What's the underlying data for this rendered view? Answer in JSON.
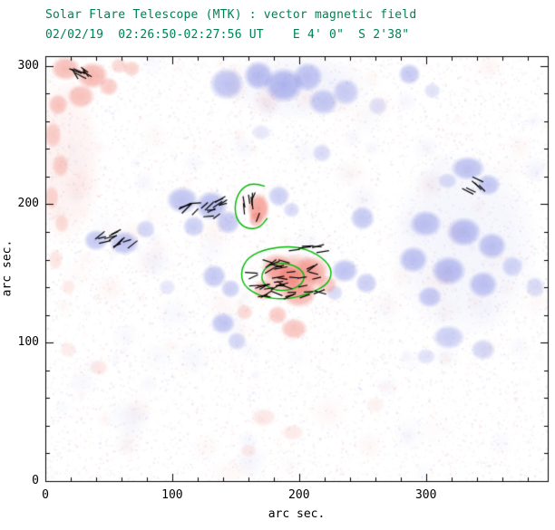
{
  "header": {
    "title": "Solar Flare Telescope (MTK) : vector magnetic field",
    "subtitle": "02/02/19  02:26:50-02:27:56 UT    E 4' 0\"  S 2'38\"",
    "title_color": "#008055"
  },
  "axes": {
    "xlabel": "arc sec.",
    "ylabel": "arc sec.",
    "x_ticks": [
      0,
      100,
      200,
      300
    ],
    "y_ticks": [
      0,
      100,
      200,
      300
    ],
    "x_range": [
      0,
      396
    ],
    "y_range": [
      0,
      307
    ],
    "minor_tick_interval": 20,
    "frame_color": "#000000"
  },
  "chart_data": {
    "type": "heatmap",
    "title": "Solar Flare Telescope (MTK) : vector magnetic field",
    "subtitle": "02/02/19  02:26:50-02:27:56 UT    E 4' 0\"  S 2'38\"",
    "xlabel": "arc sec.",
    "ylabel": "arc sec.",
    "xlim": [
      0,
      396
    ],
    "ylim": [
      0,
      307
    ],
    "grid": false,
    "legend": "none",
    "description": "Vector magnetogram: blue and red patches are opposite line-of-sight magnetic polarities on a white speckled background; short black segments show transverse field vectors; green contours outline strong-field kernels.",
    "colors": {
      "blue": "#7b84e2",
      "red": "#f0796d",
      "contour": "#00b800",
      "vector": "#000000"
    },
    "regions_format": [
      "polarity(b|r)",
      "x_arcsec",
      "y_arcsec",
      "rx_arcsec",
      "ry_arcsec",
      "intensity"
    ],
    "regions": [
      [
        "r",
        15,
        230,
        30,
        60,
        0.1
      ],
      [
        "b",
        330,
        170,
        60,
        70,
        0.08
      ],
      [
        "b",
        200,
        285,
        60,
        25,
        0.07
      ],
      [
        "b",
        143,
        287,
        14,
        12,
        0.5
      ],
      [
        "b",
        168,
        293,
        12,
        11,
        0.55
      ],
      [
        "b",
        188,
        286,
        16,
        13,
        0.6
      ],
      [
        "b",
        207,
        292,
        12,
        11,
        0.5
      ],
      [
        "b",
        219,
        274,
        12,
        10,
        0.45
      ],
      [
        "b",
        237,
        281,
        11,
        10,
        0.4
      ],
      [
        "b",
        262,
        271,
        8,
        7,
        0.25
      ],
      [
        "b",
        287,
        294,
        9,
        8,
        0.45
      ],
      [
        "b",
        305,
        282,
        7,
        6,
        0.25
      ],
      [
        "b",
        333,
        226,
        14,
        9,
        0.5
      ],
      [
        "b",
        349,
        214,
        10,
        8,
        0.45
      ],
      [
        "b",
        317,
        217,
        8,
        6,
        0.3
      ],
      [
        "b",
        300,
        186,
        13,
        10,
        0.5
      ],
      [
        "b",
        330,
        180,
        14,
        11,
        0.55
      ],
      [
        "b",
        352,
        170,
        12,
        10,
        0.5
      ],
      [
        "b",
        290,
        160,
        12,
        10,
        0.5
      ],
      [
        "b",
        318,
        152,
        14,
        11,
        0.55
      ],
      [
        "b",
        345,
        142,
        12,
        10,
        0.5
      ],
      [
        "b",
        303,
        133,
        10,
        8,
        0.45
      ],
      [
        "b",
        368,
        155,
        9,
        8,
        0.35
      ],
      [
        "b",
        386,
        140,
        8,
        8,
        0.3
      ],
      [
        "b",
        318,
        104,
        13,
        9,
        0.4
      ],
      [
        "b",
        345,
        95,
        10,
        8,
        0.35
      ],
      [
        "b",
        300,
        90,
        8,
        6,
        0.25
      ],
      [
        "b",
        250,
        190,
        10,
        9,
        0.45
      ],
      [
        "b",
        236,
        152,
        11,
        9,
        0.5
      ],
      [
        "b",
        253,
        143,
        9,
        8,
        0.4
      ],
      [
        "b",
        228,
        136,
        7,
        6,
        0.3
      ],
      [
        "b",
        108,
        203,
        13,
        10,
        0.5
      ],
      [
        "b",
        131,
        199,
        13,
        11,
        0.55
      ],
      [
        "b",
        144,
        187,
        10,
        9,
        0.45
      ],
      [
        "b",
        117,
        184,
        9,
        8,
        0.4
      ],
      [
        "b",
        184,
        206,
        9,
        8,
        0.4
      ],
      [
        "b",
        194,
        196,
        7,
        6,
        0.3
      ],
      [
        "b",
        40,
        174,
        10,
        8,
        0.45
      ],
      [
        "b",
        62,
        172,
        12,
        9,
        0.5
      ],
      [
        "b",
        79,
        182,
        8,
        7,
        0.35
      ],
      [
        "b",
        133,
        148,
        10,
        9,
        0.45
      ],
      [
        "b",
        146,
        139,
        8,
        7,
        0.4
      ],
      [
        "b",
        96,
        140,
        7,
        6,
        0.2
      ],
      [
        "b",
        140,
        114,
        10,
        8,
        0.45
      ],
      [
        "b",
        151,
        101,
        8,
        7,
        0.35
      ],
      [
        "b",
        218,
        237,
        8,
        7,
        0.3
      ],
      [
        "b",
        170,
        252,
        8,
        6,
        0.2
      ],
      [
        "r",
        16,
        298,
        12,
        9,
        0.5
      ],
      [
        "r",
        37,
        293,
        13,
        10,
        0.55
      ],
      [
        "r",
        28,
        278,
        11,
        9,
        0.45
      ],
      [
        "r",
        50,
        285,
        8,
        7,
        0.4
      ],
      [
        "r",
        10,
        272,
        8,
        8,
        0.4
      ],
      [
        "r",
        58,
        300,
        7,
        6,
        0.3
      ],
      [
        "r",
        68,
        298,
        7,
        6,
        0.35
      ],
      [
        "r",
        6,
        250,
        7,
        10,
        0.35
      ],
      [
        "r",
        12,
        228,
        7,
        9,
        0.35
      ],
      [
        "r",
        5,
        205,
        6,
        9,
        0.3
      ],
      [
        "r",
        13,
        186,
        6,
        7,
        0.25
      ],
      [
        "r",
        8,
        160,
        6,
        8,
        0.2
      ],
      [
        "r",
        18,
        140,
        6,
        6,
        0.15
      ],
      [
        "r",
        168,
        197,
        9,
        11,
        0.7
      ],
      [
        "r",
        166,
        189,
        6,
        6,
        0.5
      ],
      [
        "r",
        196,
        148,
        26,
        17,
        0.55
      ],
      [
        "r",
        210,
        152,
        14,
        11,
        0.5
      ],
      [
        "r",
        182,
        155,
        12,
        10,
        0.5
      ],
      [
        "r",
        200,
        135,
        14,
        10,
        0.55
      ],
      [
        "r",
        172,
        138,
        9,
        8,
        0.45
      ],
      [
        "r",
        222,
        142,
        8,
        7,
        0.4
      ],
      [
        "r",
        193,
        148,
        10,
        8,
        0.7
      ],
      [
        "r",
        196,
        110,
        11,
        8,
        0.45
      ],
      [
        "r",
        183,
        120,
        8,
        7,
        0.4
      ],
      [
        "r",
        157,
        122,
        7,
        6,
        0.3
      ],
      [
        "r",
        42,
        82,
        8,
        6,
        0.18
      ],
      [
        "r",
        18,
        95,
        7,
        6,
        0.14
      ],
      [
        "r",
        172,
        46,
        10,
        7,
        0.18
      ],
      [
        "r",
        195,
        35,
        9,
        6,
        0.16
      ],
      [
        "r",
        160,
        22,
        7,
        5,
        0.14
      ],
      [
        "r",
        260,
        55,
        8,
        6,
        0.1
      ]
    ],
    "contours": [
      {
        "closed": false,
        "points": [
          [
            173,
            213
          ],
          [
            163,
            216
          ],
          [
            153,
            210
          ],
          [
            149,
            199
          ],
          [
            151,
            188
          ],
          [
            159,
            182
          ],
          [
            169,
            183
          ],
          [
            175,
            190
          ]
        ]
      },
      {
        "closed": true,
        "points": [
          [
            154,
            152
          ],
          [
            160,
            162
          ],
          [
            175,
            168
          ],
          [
            197,
            170
          ],
          [
            215,
            164
          ],
          [
            226,
            154
          ],
          [
            224,
            143
          ],
          [
            210,
            136
          ],
          [
            190,
            131
          ],
          [
            170,
            133
          ],
          [
            156,
            141
          ]
        ]
      },
      {
        "closed": true,
        "points": [
          [
            175,
            156
          ],
          [
            190,
            158
          ],
          [
            202,
            153
          ],
          [
            205,
            146
          ],
          [
            198,
            139
          ],
          [
            183,
            137
          ],
          [
            172,
            142
          ],
          [
            170,
            149
          ]
        ]
      }
    ],
    "vector_clusters_format": [
      "cx",
      "cy",
      "width",
      "height",
      "count",
      "angle_deg",
      "angle_jitter_deg"
    ],
    "vector_clusters": [
      [
        35,
        296,
        28,
        10,
        7,
        -40,
        20
      ],
      [
        57,
        174,
        34,
        12,
        13,
        30,
        18
      ],
      [
        122,
        199,
        38,
        16,
        16,
        25,
        25
      ],
      [
        163,
        199,
        14,
        22,
        7,
        80,
        20
      ],
      [
        192,
        146,
        62,
        26,
        42,
        5,
        32
      ],
      [
        338,
        214,
        20,
        10,
        6,
        -35,
        15
      ],
      [
        205,
        168,
        30,
        6,
        6,
        10,
        15
      ]
    ],
    "noise": {
      "seed": 11,
      "speckle_count": 9000,
      "patch_count": 170
    }
  }
}
